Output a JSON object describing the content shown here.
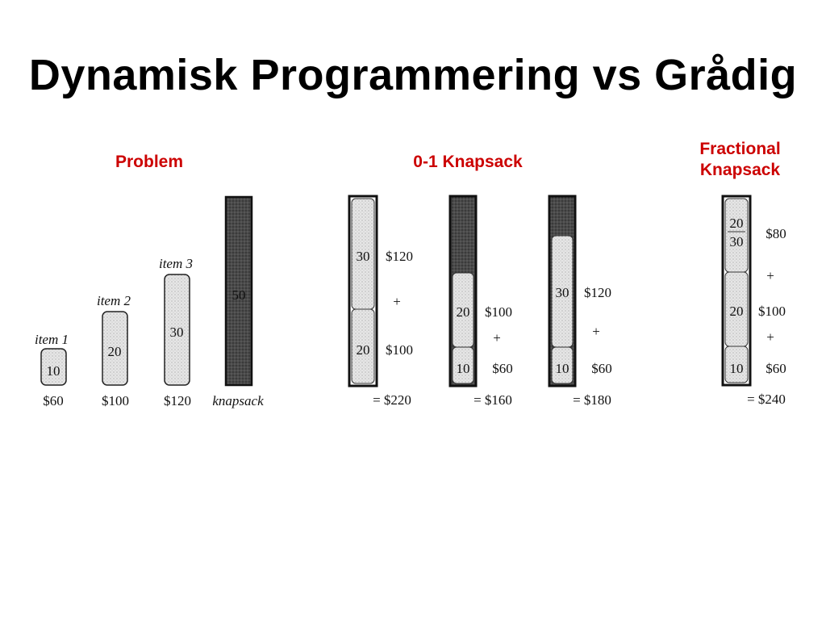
{
  "title": "Dynamisk Programmering vs Grådig",
  "headings": {
    "problem": "Problem",
    "knapsack01": "0-1 Knapsack",
    "fractional": "Fractional Knapsack"
  },
  "problem": {
    "items": [
      {
        "name": "item 1",
        "weight": "10",
        "value": "$60"
      },
      {
        "name": "item 2",
        "weight": "20",
        "value": "$100"
      },
      {
        "name": "item 3",
        "weight": "30",
        "value": "$120"
      }
    ],
    "knapsack": {
      "capacity": "50",
      "label": "knapsack"
    }
  },
  "knapsack01": [
    {
      "parts": [
        {
          "w": "30",
          "v": "$120"
        },
        {
          "w": "20",
          "v": "$100"
        }
      ],
      "plus": "+",
      "total": "= $220"
    },
    {
      "parts": [
        {
          "w": "20",
          "v": "$100"
        },
        {
          "w": "10",
          "v": "$60"
        }
      ],
      "plus": "+",
      "total": "= $160"
    },
    {
      "parts": [
        {
          "w": "30",
          "v": "$120"
        },
        {
          "w": "10",
          "v": "$60"
        }
      ],
      "plus": "+",
      "total": "= $180"
    }
  ],
  "fractional": {
    "top": {
      "w1": "20",
      "w2": "30",
      "v": "$80"
    },
    "mid": {
      "w": "20",
      "v": "$100"
    },
    "bot": {
      "w": "10",
      "v": "$60"
    },
    "plus1": "+",
    "plus2": "+",
    "total": "= $240"
  },
  "colors": {
    "heading": "#cc0000",
    "light_fill": "#e4e4e4",
    "dark_fill": "#4a4a4a"
  }
}
